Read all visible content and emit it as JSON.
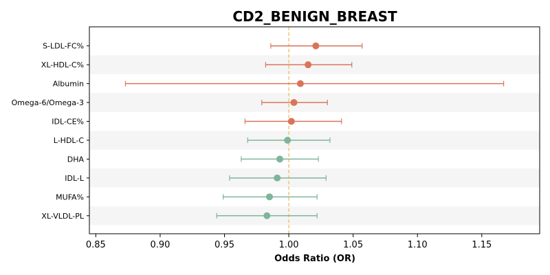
{
  "chart_data": {
    "type": "forest",
    "title": "CD2_BENIGN_BREAST",
    "xlabel": "Odds Ratio (OR)",
    "ylabel": "",
    "xlim": [
      0.845,
      1.195
    ],
    "xticks": [
      "0.85",
      "0.90",
      "0.95",
      "1.00",
      "1.05",
      "1.10",
      "1.15"
    ],
    "reference_line": 1.0,
    "reference_color": "#f2c97a",
    "positive_color": "#d9745a",
    "negative_color": "#7fb59a",
    "stripe_color": "#f5f5f5",
    "rows": [
      {
        "label": "S-LDL-FC%",
        "or": 1.021,
        "lo": 0.986,
        "hi": 1.057
      },
      {
        "label": "XL-HDL-C%",
        "or": 1.015,
        "lo": 0.982,
        "hi": 1.049
      },
      {
        "label": "Albumin",
        "or": 1.009,
        "lo": 0.873,
        "hi": 1.167
      },
      {
        "label": "Omega-6/Omega-3",
        "or": 1.004,
        "lo": 0.979,
        "hi": 1.03
      },
      {
        "label": "IDL-CE%",
        "or": 1.002,
        "lo": 0.966,
        "hi": 1.041
      },
      {
        "label": "L-HDL-C",
        "or": 0.999,
        "lo": 0.968,
        "hi": 1.032
      },
      {
        "label": "DHA",
        "or": 0.993,
        "lo": 0.963,
        "hi": 1.023
      },
      {
        "label": "IDL-L",
        "or": 0.991,
        "lo": 0.954,
        "hi": 1.029
      },
      {
        "label": "MUFA%",
        "or": 0.985,
        "lo": 0.949,
        "hi": 1.022
      },
      {
        "label": "XL-VLDL-PL",
        "or": 0.983,
        "lo": 0.944,
        "hi": 1.022
      }
    ]
  }
}
